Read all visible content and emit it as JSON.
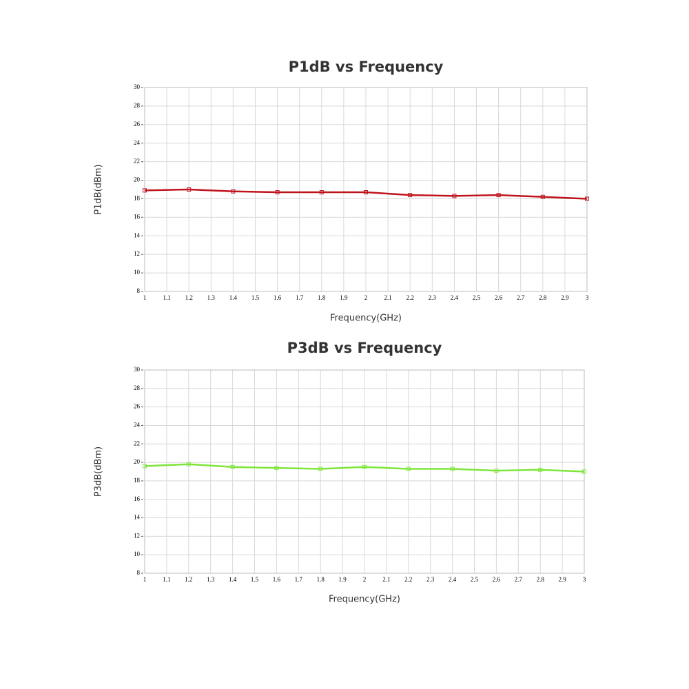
{
  "chart_data": [
    {
      "type": "line",
      "title": "P1dB vs Frequency",
      "xlabel": "Frequency(GHz)",
      "ylabel": "P1dB(dBm)",
      "x": [
        1,
        1.2,
        1.4,
        1.6,
        1.8,
        2,
        2.2,
        2.4,
        2.6,
        2.8,
        3
      ],
      "values": [
        18.9,
        19.0,
        18.8,
        18.7,
        18.7,
        18.7,
        18.4,
        18.3,
        18.4,
        18.2,
        18.0
      ],
      "color": "#c0141c",
      "xlim": [
        1,
        3
      ],
      "ylim": [
        8,
        30
      ],
      "xticks": [
        1,
        1.1,
        1.2,
        1.3,
        1.4,
        1.5,
        1.6,
        1.7,
        1.8,
        1.9,
        2,
        2.1,
        2.2,
        2.3,
        2.4,
        2.5,
        2.6,
        2.7,
        2.8,
        2.9,
        3
      ],
      "yticks": [
        8,
        10,
        12,
        14,
        16,
        18,
        20,
        22,
        24,
        26,
        28,
        30
      ],
      "grid": true
    },
    {
      "type": "line",
      "title": "P3dB vs Frequency",
      "xlabel": "Frequency(GHz)",
      "ylabel": "P3dB(dBm)",
      "x": [
        1,
        1.2,
        1.4,
        1.6,
        1.8,
        2,
        2.2,
        2.4,
        2.6,
        2.8,
        3
      ],
      "values": [
        19.6,
        19.8,
        19.5,
        19.4,
        19.3,
        19.5,
        19.3,
        19.3,
        19.1,
        19.2,
        19.0
      ],
      "color": "#7ee63a",
      "xlim": [
        1,
        3
      ],
      "ylim": [
        8,
        30
      ],
      "xticks": [
        1,
        1.1,
        1.2,
        1.3,
        1.4,
        1.5,
        1.6,
        1.7,
        1.8,
        1.9,
        2,
        2.1,
        2.2,
        2.3,
        2.4,
        2.5,
        2.6,
        2.7,
        2.8,
        2.9,
        3
      ],
      "yticks": [
        8,
        10,
        12,
        14,
        16,
        18,
        20,
        22,
        24,
        26,
        28,
        30
      ],
      "grid": true
    }
  ]
}
